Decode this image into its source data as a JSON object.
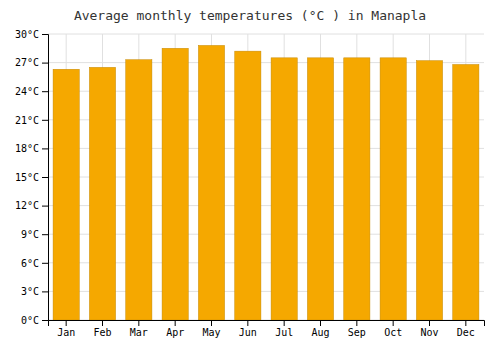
{
  "chart_data": {
    "type": "bar",
    "title": "Average monthly temperatures (°C ) in Manapla",
    "categories": [
      "Jan",
      "Feb",
      "Mar",
      "Apr",
      "May",
      "Jun",
      "Jul",
      "Aug",
      "Sep",
      "Oct",
      "Nov",
      "Dec"
    ],
    "values": [
      26.3,
      26.5,
      27.3,
      28.5,
      28.8,
      28.2,
      27.5,
      27.5,
      27.5,
      27.5,
      27.2,
      26.8
    ],
    "color": "#F5A800",
    "ylim": [
      0,
      30
    ],
    "yticks": [
      {
        "value": 0,
        "label": "0°C"
      },
      {
        "value": 3,
        "label": "3°C"
      },
      {
        "value": 6,
        "label": "6°C"
      },
      {
        "value": 9,
        "label": "9°C"
      },
      {
        "value": 12,
        "label": "12°C"
      },
      {
        "value": 15,
        "label": "15°C"
      },
      {
        "value": 18,
        "label": "18°C"
      },
      {
        "value": 21,
        "label": "21°C"
      },
      {
        "value": 24,
        "label": "24°C"
      },
      {
        "value": 27,
        "label": "27°C"
      },
      {
        "value": 30,
        "label": "30°C"
      }
    ],
    "grid": true
  }
}
